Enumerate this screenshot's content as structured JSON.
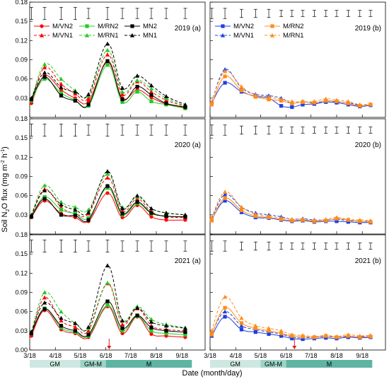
{
  "y_axis_label_parts": [
    "Soil N",
    "2",
    "O flux (mg m",
    "-2",
    " h",
    "-1",
    ")"
  ],
  "x_axis_label": "Date (month/day)",
  "chart_data": {
    "type": "line",
    "x_ticks": [
      "3/18",
      "4/18",
      "5/18",
      "6/18",
      "7/18",
      "8/18",
      "9/18"
    ],
    "y_ticks": [
      "0.00",
      "0.03",
      "0.06",
      "0.09",
      "0.12",
      "0.15",
      "0.18"
    ],
    "ylim": [
      0,
      0.18
    ],
    "stage_bar": [
      {
        "label": "GM",
        "start": "3/18",
        "end": "5/18",
        "color": "#cde8e0"
      },
      {
        "label": "GM-M",
        "start": "5/18",
        "end": "6/18",
        "color": "#9dd3c6"
      },
      {
        "label": "M",
        "start": "6/18",
        "end": "9/30",
        "color": "#5fb3a3"
      }
    ],
    "series_styles": {
      "M/VN2": {
        "color": "#ff0000",
        "marker": "circle",
        "dashed": false
      },
      "M/VN1": {
        "color": "#ff0000",
        "marker": "triangle",
        "dashed": true
      },
      "M/RN2": {
        "color": "#22cc22",
        "marker": "square",
        "dashed": false
      },
      "M/RN1": {
        "color": "#22cc22",
        "marker": "triangle",
        "dashed": true
      },
      "MN2": {
        "color": "#000000",
        "marker": "square",
        "dashed": false
      },
      "MN1": {
        "color": "#000000",
        "marker": "triangle",
        "dashed": true
      },
      "M/VN2b": {
        "color": "#1f3fe0",
        "marker": "square",
        "dashed": false
      },
      "M/VN1b": {
        "color": "#1f3fe0",
        "marker": "triangle",
        "dashed": true
      },
      "M/RN2b": {
        "color": "#ff8c1a",
        "marker": "square",
        "dashed": false
      },
      "M/RN1b": {
        "color": "#ff8c1a",
        "marker": "triangle",
        "dashed": true
      }
    },
    "legend_a": [
      {
        "key": "M/VN2",
        "name": "M/VN2"
      },
      {
        "key": "M/RN2",
        "name": "M/RN2"
      },
      {
        "key": "MN2",
        "name": "MN2"
      },
      {
        "key": "M/VN1",
        "name": "M/VN1"
      },
      {
        "key": "M/RN1",
        "name": "M/RN1"
      },
      {
        "key": "MN1",
        "name": "MN1"
      }
    ],
    "legend_b": [
      {
        "key": "M/VN2b",
        "name": "M/VN2"
      },
      {
        "key": "M/RN2b",
        "name": "M/RN2"
      },
      {
        "key": "M/VN1b",
        "name": "M/VN1"
      },
      {
        "key": "M/RN1b",
        "name": "M/RN1"
      }
    ],
    "panels": [
      {
        "id": "2019a",
        "label": "2019 (a)",
        "column": 0,
        "row": 0,
        "x_dates": [
          "3/20",
          "4/5",
          "4/25",
          "5/12",
          "5/28",
          "6/20",
          "7/8",
          "7/26",
          "8/12",
          "8/30",
          "9/22"
        ],
        "error_bar_halfwidths": [
          0.006,
          0.006,
          0.006,
          0.006,
          0.005,
          0.006,
          0.005,
          0.005,
          0.005,
          0.005,
          0.005
        ],
        "series": [
          {
            "key": "M/VN2",
            "values": [
              0.022,
              0.065,
              0.043,
              0.03,
              0.025,
              0.086,
              0.03,
              0.043,
              0.031,
              0.021,
              0.015
            ]
          },
          {
            "key": "M/VN1",
            "values": [
              0.024,
              0.078,
              0.052,
              0.037,
              0.03,
              0.098,
              0.036,
              0.056,
              0.04,
              0.027,
              0.017
            ]
          },
          {
            "key": "M/RN2",
            "values": [
              0.026,
              0.06,
              0.038,
              0.027,
              0.018,
              0.082,
              0.024,
              0.04,
              0.025,
              0.02,
              0.014
            ]
          },
          {
            "key": "M/RN1",
            "values": [
              0.027,
              0.083,
              0.06,
              0.042,
              0.034,
              0.105,
              0.04,
              0.058,
              0.045,
              0.03,
              0.018
            ]
          },
          {
            "key": "MN2",
            "values": [
              0.028,
              0.063,
              0.034,
              0.026,
              0.02,
              0.088,
              0.028,
              0.048,
              0.035,
              0.022,
              0.016
            ]
          },
          {
            "key": "MN1",
            "values": [
              0.03,
              0.07,
              0.047,
              0.04,
              0.036,
              0.115,
              0.046,
              0.065,
              0.05,
              0.033,
              0.02
            ]
          }
        ]
      },
      {
        "id": "2019b",
        "label": "2019 (b)",
        "column": 1,
        "row": 0,
        "x_dates": [
          "3/20",
          "4/5",
          "4/25",
          "5/12",
          "5/28",
          "6/12",
          "6/25",
          "7/8",
          "7/22",
          "8/5",
          "8/18",
          "9/1",
          "9/15",
          "9/28"
        ],
        "error_bar_halfwidths": [
          0.005,
          0.005,
          0.004,
          0.004,
          0.004,
          0.003,
          0.003,
          0.003,
          0.003,
          0.003,
          0.003,
          0.003,
          0.003,
          0.003
        ],
        "series": [
          {
            "key": "M/VN2b",
            "values": [
              0.022,
              0.054,
              0.04,
              0.033,
              0.03,
              0.018,
              0.016,
              0.02,
              0.021,
              0.024,
              0.023,
              0.02,
              0.017,
              0.019
            ]
          },
          {
            "key": "M/VN1b",
            "values": [
              0.024,
              0.075,
              0.046,
              0.036,
              0.034,
              0.03,
              0.022,
              0.025,
              0.022,
              0.026,
              0.024,
              0.023,
              0.019,
              0.02
            ]
          },
          {
            "key": "M/RN2b",
            "values": [
              0.02,
              0.064,
              0.042,
              0.032,
              0.028,
              0.026,
              0.022,
              0.024,
              0.023,
              0.026,
              0.025,
              0.022,
              0.018,
              0.02
            ]
          },
          {
            "key": "M/RN1b",
            "values": [
              0.024,
              0.072,
              0.048,
              0.035,
              0.032,
              0.028,
              0.025,
              0.024,
              0.025,
              0.029,
              0.027,
              0.025,
              0.02,
              0.021
            ]
          }
        ]
      },
      {
        "id": "2020a",
        "label": "2020 (a)",
        "column": 0,
        "row": 1,
        "x_dates": [
          "3/20",
          "4/5",
          "4/25",
          "5/12",
          "5/28",
          "6/20",
          "7/8",
          "7/26",
          "8/12",
          "8/30",
          "9/22"
        ],
        "error_bar_halfwidths": [
          0.006,
          0.006,
          0.006,
          0.006,
          0.005,
          0.006,
          0.005,
          0.005,
          0.005,
          0.005,
          0.005
        ],
        "series": [
          {
            "key": "M/VN2",
            "values": [
              0.026,
              0.052,
              0.032,
              0.026,
              0.02,
              0.064,
              0.026,
              0.045,
              0.027,
              0.022,
              0.022
            ]
          },
          {
            "key": "M/VN1",
            "values": [
              0.028,
              0.07,
              0.042,
              0.032,
              0.032,
              0.088,
              0.036,
              0.055,
              0.035,
              0.027,
              0.026
            ]
          },
          {
            "key": "M/RN2",
            "values": [
              0.027,
              0.058,
              0.038,
              0.032,
              0.025,
              0.072,
              0.03,
              0.048,
              0.032,
              0.028,
              0.027
            ]
          },
          {
            "key": "M/RN1",
            "values": [
              0.03,
              0.076,
              0.05,
              0.042,
              0.038,
              0.094,
              0.042,
              0.058,
              0.04,
              0.033,
              0.03
            ]
          },
          {
            "key": "MN2",
            "values": [
              0.027,
              0.055,
              0.03,
              0.029,
              0.022,
              0.075,
              0.032,
              0.05,
              0.033,
              0.028,
              0.027
            ]
          },
          {
            "key": "MN1",
            "values": [
              0.029,
              0.068,
              0.046,
              0.038,
              0.034,
              0.098,
              0.04,
              0.06,
              0.04,
              0.033,
              0.03
            ]
          }
        ]
      },
      {
        "id": "2020b",
        "label": "2020 (b)",
        "column": 1,
        "row": 1,
        "x_dates": [
          "3/20",
          "4/5",
          "4/25",
          "5/12",
          "5/28",
          "6/12",
          "6/25",
          "7/8",
          "7/22",
          "8/5",
          "8/18",
          "9/1",
          "9/15",
          "9/28"
        ],
        "error_bar_halfwidths": [
          0.005,
          0.005,
          0.004,
          0.004,
          0.004,
          0.003,
          0.003,
          0.003,
          0.003,
          0.003,
          0.003,
          0.003,
          0.003,
          0.003
        ],
        "series": [
          {
            "key": "M/VN2b",
            "values": [
              0.022,
              0.052,
              0.034,
              0.026,
              0.025,
              0.022,
              0.02,
              0.021,
              0.019,
              0.02,
              0.02,
              0.019,
              0.018,
              0.018
            ]
          },
          {
            "key": "M/VN1b",
            "values": [
              0.024,
              0.062,
              0.042,
              0.033,
              0.03,
              0.027,
              0.023,
              0.024,
              0.022,
              0.022,
              0.023,
              0.021,
              0.02,
              0.02
            ]
          },
          {
            "key": "M/RN2b",
            "values": [
              0.021,
              0.056,
              0.037,
              0.028,
              0.026,
              0.023,
              0.021,
              0.022,
              0.02,
              0.021,
              0.024,
              0.022,
              0.02,
              0.019
            ]
          },
          {
            "key": "M/RN1b",
            "values": [
              0.026,
              0.066,
              0.042,
              0.031,
              0.028,
              0.025,
              0.023,
              0.023,
              0.021,
              0.023,
              0.026,
              0.023,
              0.022,
              0.021
            ]
          }
        ]
      },
      {
        "id": "2021a",
        "label": "2021 (a)",
        "column": 0,
        "row": 2,
        "x_dates": [
          "3/20",
          "4/5",
          "4/25",
          "5/12",
          "5/28",
          "6/20",
          "7/8",
          "7/26",
          "8/12",
          "8/30",
          "9/22"
        ],
        "error_bar_halfwidths": [
          0.006,
          0.006,
          0.006,
          0.006,
          0.005,
          0.006,
          0.005,
          0.005,
          0.005,
          0.005,
          0.005
        ],
        "series": [
          {
            "key": "M/VN2",
            "values": [
              0.022,
              0.062,
              0.032,
              0.026,
              0.02,
              0.068,
              0.026,
              0.052,
              0.025,
              0.022,
              0.02
            ]
          },
          {
            "key": "M/VN1",
            "values": [
              0.024,
              0.082,
              0.046,
              0.036,
              0.03,
              0.104,
              0.04,
              0.065,
              0.038,
              0.032,
              0.03
            ]
          },
          {
            "key": "M/RN2",
            "values": [
              0.026,
              0.065,
              0.035,
              0.028,
              0.022,
              0.07,
              0.03,
              0.053,
              0.03,
              0.026,
              0.024
            ]
          },
          {
            "key": "M/RN1",
            "values": [
              0.028,
              0.09,
              0.06,
              0.042,
              0.034,
              0.105,
              0.046,
              0.068,
              0.048,
              0.04,
              0.035
            ]
          },
          {
            "key": "MN2",
            "values": [
              0.026,
              0.064,
              0.038,
              0.03,
              0.024,
              0.076,
              0.034,
              0.054,
              0.035,
              0.03,
              0.028
            ]
          },
          {
            "key": "MN1",
            "values": [
              0.028,
              0.074,
              0.05,
              0.042,
              0.036,
              0.132,
              0.046,
              0.066,
              0.044,
              0.038,
              0.034
            ]
          }
        ]
      },
      {
        "id": "2021b",
        "label": "2021 (b)",
        "column": 1,
        "row": 2,
        "x_dates": [
          "3/20",
          "4/5",
          "4/25",
          "5/12",
          "5/28",
          "6/12",
          "6/25",
          "7/8",
          "7/22",
          "8/5",
          "8/18",
          "9/1",
          "9/15",
          "9/28"
        ],
        "error_bar_halfwidths": [
          0.005,
          0.005,
          0.004,
          0.004,
          0.004,
          0.003,
          0.003,
          0.003,
          0.003,
          0.003,
          0.003,
          0.003,
          0.003,
          0.003
        ],
        "series": [
          {
            "key": "M/VN2b",
            "values": [
              0.022,
              0.052,
              0.032,
              0.028,
              0.025,
              0.022,
              0.018,
              0.017,
              0.018,
              0.019,
              0.018,
              0.02,
              0.019,
              0.02
            ]
          },
          {
            "key": "M/VN1b",
            "values": [
              0.026,
              0.06,
              0.038,
              0.032,
              0.028,
              0.025,
              0.02,
              0.019,
              0.02,
              0.021,
              0.02,
              0.021,
              0.021,
              0.021
            ]
          },
          {
            "key": "M/RN2b",
            "values": [
              0.024,
              0.066,
              0.042,
              0.034,
              0.03,
              0.026,
              0.022,
              0.021,
              0.02,
              0.022,
              0.02,
              0.022,
              0.02,
              0.021
            ]
          },
          {
            "key": "M/RN1b",
            "values": [
              0.03,
              0.083,
              0.05,
              0.038,
              0.034,
              0.03,
              0.024,
              0.023,
              0.021,
              0.023,
              0.021,
              0.024,
              0.022,
              0.023
            ]
          }
        ]
      }
    ],
    "arrows": [
      {
        "panel": "2021a",
        "date": "6/22",
        "color": "#e02020"
      },
      {
        "panel": "2021b",
        "date": "6/28",
        "color": "#e02020"
      }
    ]
  }
}
